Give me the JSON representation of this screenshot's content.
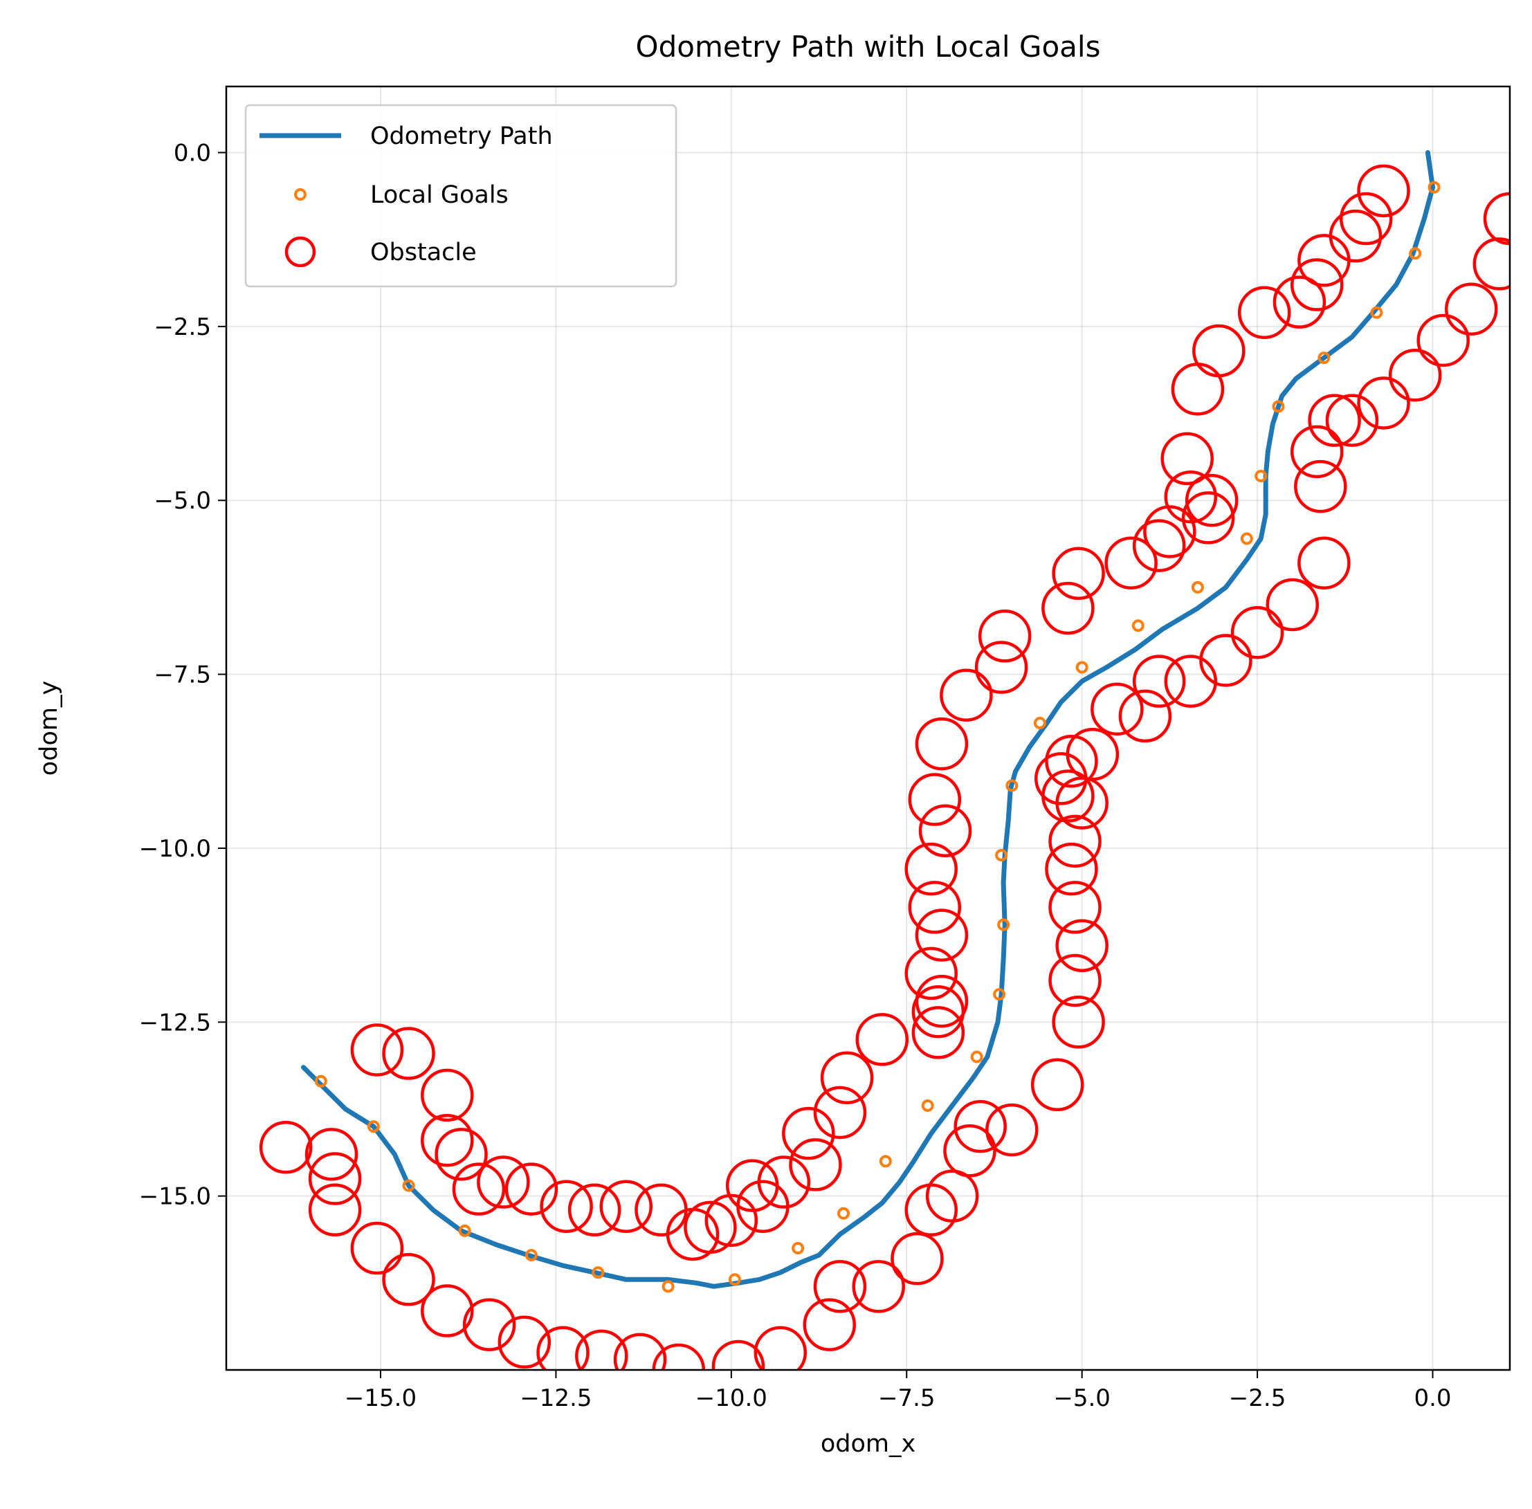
{
  "chart_data": {
    "type": "scatter",
    "title": "Odometry Path with Local Goals",
    "xlabel": "odom_x",
    "ylabel": "odom_y",
    "xlim": [
      -17.2,
      1.1
    ],
    "ylim": [
      -17.5,
      0.95
    ],
    "grid": true,
    "legend_placement": "upper left",
    "xticks": [
      {
        "value": -15.0,
        "label": "−15.0"
      },
      {
        "value": -12.5,
        "label": "−12.5"
      },
      {
        "value": -10.0,
        "label": "−10.0"
      },
      {
        "value": -7.5,
        "label": "−7.5"
      },
      {
        "value": -5.0,
        "label": "−5.0"
      },
      {
        "value": -2.5,
        "label": "−2.5"
      },
      {
        "value": 0.0,
        "label": "0.0"
      }
    ],
    "yticks": [
      {
        "value": 0.0,
        "label": "0.0"
      },
      {
        "value": -2.5,
        "label": "−2.5"
      },
      {
        "value": -5.0,
        "label": "−5.0"
      },
      {
        "value": -7.5,
        "label": "−7.5"
      },
      {
        "value": -10.0,
        "label": "−10.0"
      },
      {
        "value": -12.5,
        "label": "−12.5"
      },
      {
        "value": -15.0,
        "label": "−15.0"
      }
    ],
    "series": [
      {
        "name": "Odometry Path",
        "kind": "line",
        "color": "#1f77b4",
        "x": [
          -0.07,
          0.0,
          -0.12,
          -0.28,
          -0.52,
          -0.85,
          -1.15,
          -1.55,
          -1.95,
          -2.15,
          -2.28,
          -2.35,
          -2.38,
          -2.38,
          -2.45,
          -2.65,
          -2.95,
          -3.35,
          -3.85,
          -4.25,
          -4.65,
          -5.0,
          -5.3,
          -5.5,
          -5.75,
          -5.95,
          -6.02,
          -6.05,
          -6.1,
          -6.12,
          -6.1,
          -6.12,
          -6.15,
          -6.2,
          -6.35,
          -6.55,
          -6.85,
          -7.15,
          -7.4,
          -7.6,
          -7.85,
          -8.1,
          -8.45,
          -8.75,
          -9.0,
          -9.3,
          -9.6,
          -9.9,
          -10.25,
          -10.5,
          -10.9,
          -11.25,
          -11.5,
          -11.95,
          -12.4,
          -12.9,
          -13.35,
          -13.85,
          -14.25,
          -14.6,
          -14.8,
          -15.1,
          -15.5,
          -15.85,
          -16.1
        ],
        "y": [
          0.0,
          -0.5,
          -0.95,
          -1.45,
          -1.9,
          -2.3,
          -2.65,
          -2.95,
          -3.25,
          -3.5,
          -3.9,
          -4.3,
          -4.65,
          -5.2,
          -5.55,
          -5.85,
          -6.25,
          -6.55,
          -6.85,
          -7.15,
          -7.4,
          -7.6,
          -7.9,
          -8.2,
          -8.55,
          -8.9,
          -9.15,
          -9.6,
          -10.1,
          -10.5,
          -11.1,
          -11.6,
          -12.1,
          -12.5,
          -13.0,
          -13.3,
          -13.7,
          -14.1,
          -14.5,
          -14.8,
          -15.1,
          -15.3,
          -15.55,
          -15.85,
          -15.95,
          -16.1,
          -16.2,
          -16.25,
          -16.3,
          -16.25,
          -16.2,
          -16.2,
          -16.2,
          -16.1,
          -16.0,
          -15.85,
          -15.7,
          -15.5,
          -15.2,
          -14.85,
          -14.4,
          -14.0,
          -13.75,
          -13.4,
          -13.15
        ]
      },
      {
        "name": "Local Goals",
        "kind": "scatter",
        "color": "#ff7f0e",
        "x": [
          0.02,
          -0.25,
          -0.8,
          -1.55,
          -2.2,
          -2.45,
          -2.65,
          -3.35,
          -4.2,
          -5.0,
          -5.6,
          -6.0,
          -6.15,
          -6.12,
          -6.18,
          -6.5,
          -7.2,
          -7.8,
          -8.4,
          -9.05,
          -9.95,
          -10.9,
          -11.9,
          -12.85,
          -13.8,
          -14.6,
          -15.1,
          -15.85
        ],
        "y": [
          -0.5,
          -1.45,
          -2.3,
          -2.95,
          -3.65,
          -4.65,
          -5.55,
          -6.25,
          -6.8,
          -7.4,
          -8.2,
          -9.1,
          -10.1,
          -11.1,
          -12.1,
          -13.0,
          -13.7,
          -14.5,
          -15.25,
          -15.75,
          -16.2,
          -16.3,
          -16.1,
          -15.85,
          -15.5,
          -14.85,
          -14.0,
          -13.35
        ]
      },
      {
        "name": "Obstacle",
        "kind": "scatter",
        "color": "#ff0000",
        "x": [
          -0.7,
          -0.95,
          -1.1,
          -1.55,
          -1.65,
          -1.9,
          -2.4,
          -3.05,
          -3.35,
          -3.5,
          -3.45,
          -3.15,
          -3.2,
          -3.75,
          -3.9,
          -4.3,
          -5.05,
          -5.2,
          -6.1,
          -6.15,
          -6.65,
          -7.0,
          -7.1,
          -6.95,
          -7.15,
          -7.1,
          -7.0,
          -7.15,
          -7.0,
          -7.05,
          -7.05,
          -7.85,
          -8.35,
          -8.45,
          -8.9,
          -8.8,
          -9.25,
          -9.55,
          -9.7,
          -10.0,
          -10.3,
          -10.55,
          -11.0,
          -11.5,
          -11.95,
          -12.35,
          -12.85,
          -13.25,
          -13.6,
          -13.85,
          -14.05,
          -14.05,
          -14.6,
          -15.05,
          -16.35,
          -15.7,
          -15.65,
          -15.65,
          -15.05,
          -14.6,
          -14.05,
          -13.45,
          -12.95,
          -12.4,
          -11.85,
          -11.3,
          -10.75,
          -9.9,
          -9.3,
          -8.6,
          -8.45,
          -7.9,
          -7.35,
          -6.85,
          -7.15,
          -6.6,
          -6.45,
          -6.0,
          -5.35,
          -5.05,
          -5.1,
          -5.0,
          -5.1,
          -5.15,
          -5.1,
          -5.0,
          -5.2,
          -5.3,
          -5.15,
          -4.85,
          -4.5,
          -4.1,
          -3.9,
          -3.45,
          -2.95,
          -2.5,
          -2.0,
          -1.55,
          -1.6,
          -1.65,
          -1.4,
          -1.15,
          -0.7,
          -0.25,
          0.15,
          0.55,
          0.95,
          1.1
        ],
        "y": [
          -0.55,
          -0.95,
          -1.2,
          -1.55,
          -1.9,
          -2.15,
          -2.3,
          -2.85,
          -3.4,
          -4.4,
          -4.95,
          -5.0,
          -5.25,
          -5.45,
          -5.65,
          -5.9,
          -6.05,
          -6.55,
          -6.95,
          -7.4,
          -7.8,
          -8.5,
          -9.3,
          -9.75,
          -10.3,
          -10.85,
          -11.25,
          -11.8,
          -12.2,
          -12.35,
          -12.65,
          -12.75,
          -13.3,
          -13.8,
          -14.1,
          -14.55,
          -14.8,
          -15.15,
          -14.85,
          -15.35,
          -15.45,
          -15.55,
          -15.2,
          -15.15,
          -15.2,
          -15.15,
          -14.9,
          -14.8,
          -14.9,
          -14.4,
          -14.2,
          -13.55,
          -12.95,
          -12.9,
          -14.3,
          -14.4,
          -14.75,
          -15.2,
          -15.75,
          -16.2,
          -16.65,
          -16.85,
          -17.1,
          -17.25,
          -17.3,
          -17.35,
          -17.5,
          -17.45,
          -17.25,
          -16.85,
          -16.3,
          -16.3,
          -15.9,
          -15.0,
          -15.2,
          -14.35,
          -14.0,
          -14.05,
          -13.4,
          -12.5,
          -11.9,
          -11.4,
          -10.85,
          -10.3,
          -9.9,
          -9.35,
          -9.25,
          -9.0,
          -8.75,
          -8.65,
          -8.0,
          -8.1,
          -7.6,
          -7.6,
          -7.3,
          -6.9,
          -6.5,
          -5.9,
          -4.8,
          -4.3,
          -3.85,
          -3.85,
          -3.6,
          -3.2,
          -2.7,
          -2.25,
          -1.6,
          -0.95
        ]
      }
    ]
  }
}
